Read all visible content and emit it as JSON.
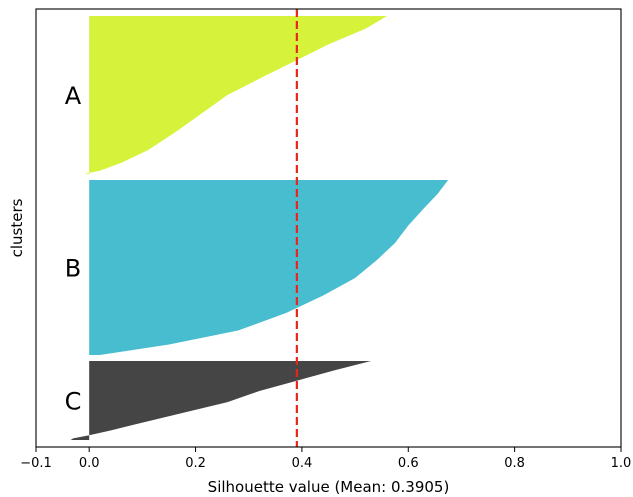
{
  "chart_data": {
    "type": "area",
    "xlabel": "Silhouette value (Mean: 0.3905)",
    "ylabel": "clusters",
    "xlim": [
      -0.1,
      1.0
    ],
    "x_ticks": [
      -0.1,
      0.0,
      0.2,
      0.4,
      0.6,
      0.8,
      1.0
    ],
    "x_tick_labels": [
      "−0.1",
      "0.0",
      "0.2",
      "0.4",
      "0.6",
      "0.8",
      "1.0"
    ],
    "mean_silhouette": 0.3905,
    "mean_line_color": "#e8251d",
    "grid": false,
    "clusters": [
      {
        "label": "A",
        "color": "#d7f23a",
        "profile": [
          [
            0.0,
            0.56
          ],
          [
            0.08,
            0.52
          ],
          [
            0.18,
            0.45
          ],
          [
            0.28,
            0.39
          ],
          [
            0.38,
            0.33
          ],
          [
            0.5,
            0.26
          ],
          [
            0.62,
            0.21
          ],
          [
            0.74,
            0.16
          ],
          [
            0.85,
            0.11
          ],
          [
            0.93,
            0.06
          ],
          [
            0.98,
            0.02
          ],
          [
            1.0,
            -0.01
          ]
        ]
      },
      {
        "label": "B",
        "color": "#48bdcf",
        "profile": [
          [
            0.0,
            0.675
          ],
          [
            0.08,
            0.655
          ],
          [
            0.16,
            0.63
          ],
          [
            0.26,
            0.6
          ],
          [
            0.36,
            0.575
          ],
          [
            0.46,
            0.54
          ],
          [
            0.56,
            0.5
          ],
          [
            0.66,
            0.44
          ],
          [
            0.76,
            0.37
          ],
          [
            0.86,
            0.28
          ],
          [
            0.94,
            0.15
          ],
          [
            1.0,
            0.02
          ]
        ]
      },
      {
        "label": "C",
        "color": "#454545",
        "profile": [
          [
            0.0,
            0.53
          ],
          [
            0.12,
            0.46
          ],
          [
            0.25,
            0.39
          ],
          [
            0.38,
            0.32
          ],
          [
            0.52,
            0.26
          ],
          [
            0.65,
            0.18
          ],
          [
            0.78,
            0.1
          ],
          [
            0.88,
            0.04
          ],
          [
            0.94,
            0.0
          ],
          [
            0.98,
            -0.03
          ],
          [
            1.0,
            -0.035
          ]
        ]
      }
    ]
  }
}
